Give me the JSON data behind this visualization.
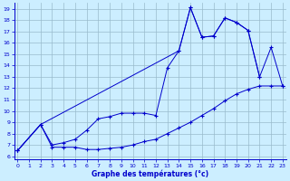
{
  "xlabel": "Graphe des températures (°c)",
  "bg_color": "#cceeff",
  "line_color": "#0000cc",
  "grid_color": "#99bbcc",
  "xlim": [
    -0.3,
    23.3
  ],
  "ylim": [
    5.7,
    19.5
  ],
  "xticks": [
    0,
    1,
    2,
    3,
    4,
    5,
    6,
    7,
    8,
    9,
    10,
    11,
    12,
    13,
    14,
    15,
    16,
    17,
    18,
    19,
    20,
    21,
    22,
    23
  ],
  "yticks": [
    6,
    7,
    8,
    9,
    10,
    11,
    12,
    13,
    14,
    15,
    16,
    17,
    18,
    19
  ],
  "line1_x": [
    0,
    2,
    3,
    4,
    5,
    6,
    7,
    8,
    9,
    10,
    11,
    12,
    13,
    14,
    15,
    16,
    17,
    18,
    19,
    20,
    21
  ],
  "line1_y": [
    6.5,
    8.8,
    7.0,
    7.2,
    7.5,
    8.3,
    9.3,
    9.5,
    9.8,
    9.8,
    9.8,
    9.6,
    13.8,
    15.3,
    19.1,
    16.5,
    16.6,
    18.2,
    17.8,
    17.1,
    13.0
  ],
  "line2_x": [
    0,
    2,
    3,
    4,
    5,
    6,
    7,
    8,
    9,
    10,
    11,
    12,
    13,
    14,
    15,
    16,
    17,
    18,
    19,
    20,
    21,
    22,
    23
  ],
  "line2_y": [
    6.5,
    8.8,
    6.8,
    6.8,
    6.8,
    6.6,
    6.6,
    6.7,
    6.8,
    7.0,
    7.3,
    7.5,
    8.0,
    8.5,
    9.0,
    9.6,
    10.2,
    10.9,
    11.5,
    11.9,
    12.2,
    12.2,
    12.2
  ],
  "line3_x": [
    0,
    2,
    14,
    15,
    16,
    17,
    18,
    19,
    20,
    21,
    22,
    23
  ],
  "line3_y": [
    6.5,
    8.8,
    15.3,
    19.1,
    16.5,
    16.6,
    18.2,
    17.8,
    17.1,
    13.0,
    15.6,
    12.2
  ]
}
